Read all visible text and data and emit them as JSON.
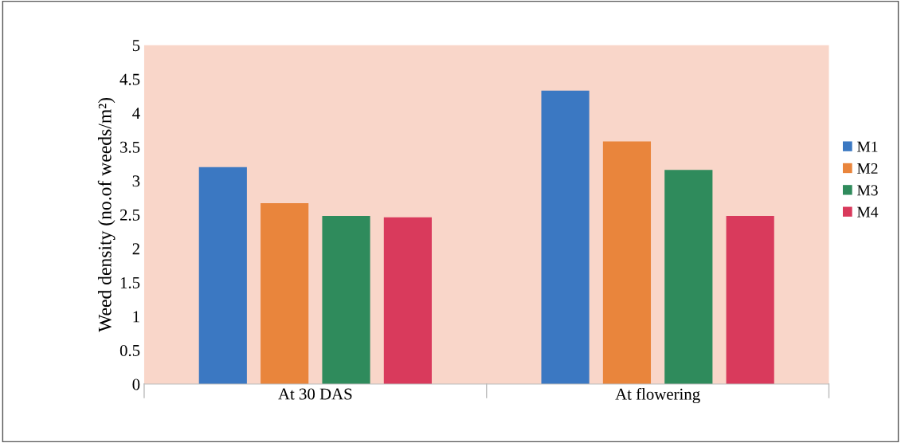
{
  "chart_data": {
    "type": "bar",
    "ylabel": "Weed density (no.of weeds/m²)",
    "categories": [
      "At 30 DAS",
      "At flowering"
    ],
    "series": [
      {
        "name": "M1",
        "color": "#3b78c2",
        "values": [
          3.2,
          4.33
        ]
      },
      {
        "name": "M2",
        "color": "#e9853c",
        "values": [
          2.67,
          3.58
        ]
      },
      {
        "name": "M3",
        "color": "#2f8b5c",
        "values": [
          2.48,
          3.16
        ]
      },
      {
        "name": "M4",
        "color": "#d93a5c",
        "values": [
          2.46,
          2.48
        ]
      }
    ],
    "ylim": [
      0,
      5
    ],
    "yticks": [
      0,
      0.5,
      1,
      1.5,
      2,
      2.5,
      3,
      3.5,
      4,
      4.5,
      5
    ],
    "grid": false,
    "legend": "right"
  }
}
